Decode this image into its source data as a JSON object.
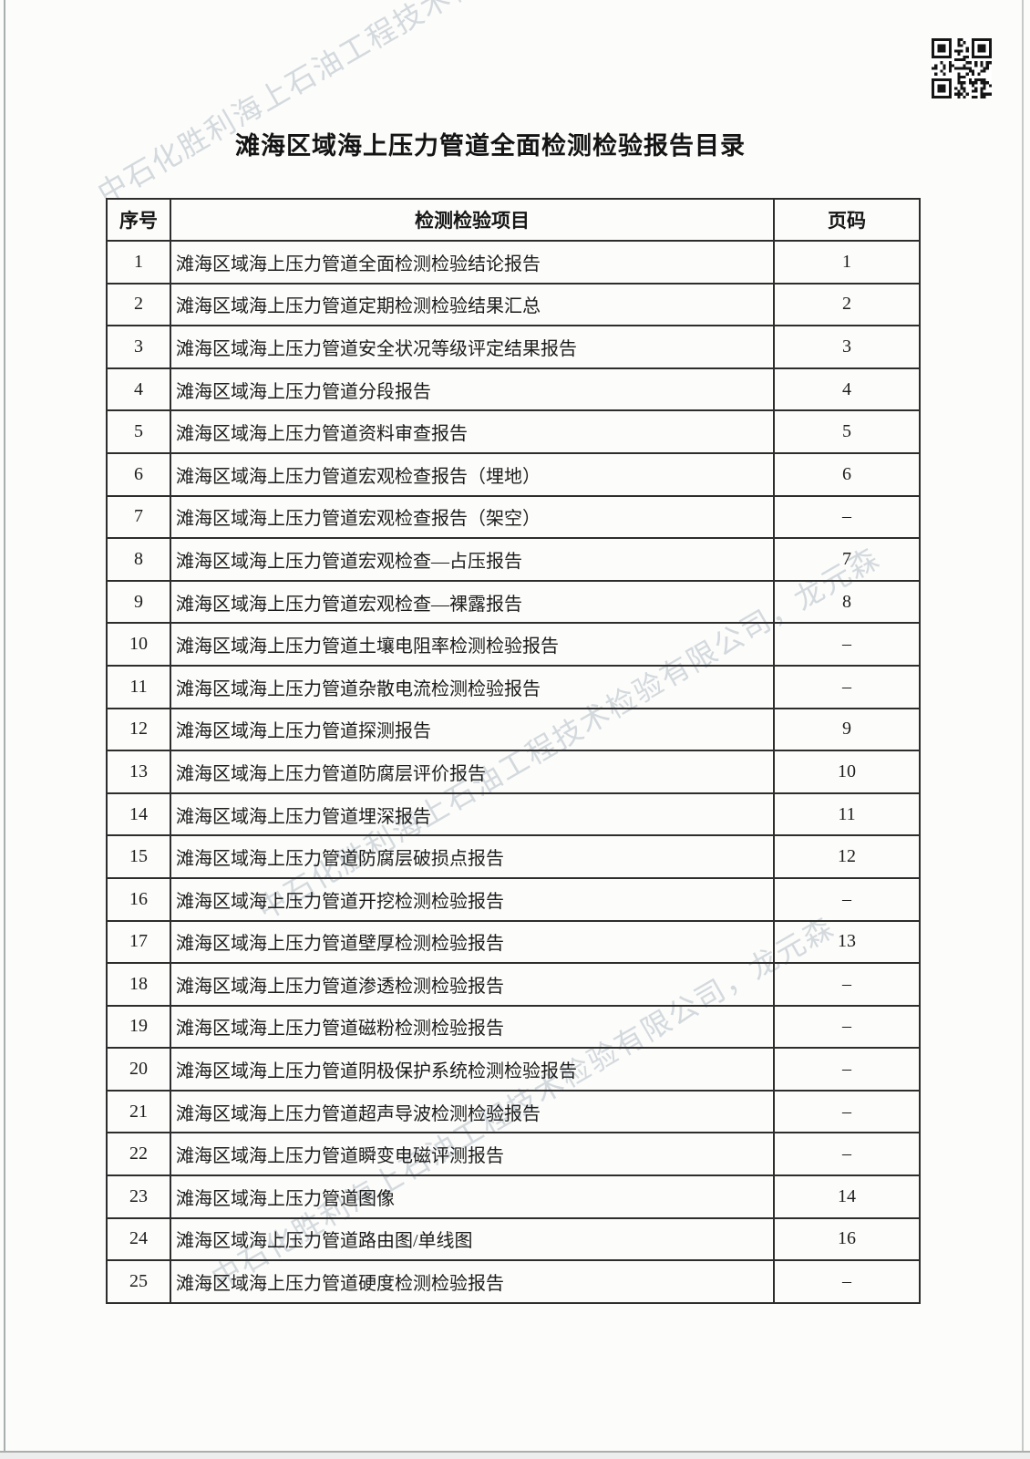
{
  "page": {
    "title": "滩海区域海上压力管道全面检测检验报告目录",
    "watermark_text": "中石化胜利海上石油工程技术检验有限公司，龙元森"
  },
  "qr": {
    "label": "qr-code",
    "color": "#151515"
  },
  "table": {
    "headers": [
      "序号",
      "检测检验项目",
      "页码"
    ],
    "rows": [
      {
        "no": "1",
        "item": "滩海区域海上压力管道全面检测检验结论报告",
        "page": "1"
      },
      {
        "no": "2",
        "item": "滩海区域海上压力管道定期检测检验结果汇总",
        "page": "2"
      },
      {
        "no": "3",
        "item": "滩海区域海上压力管道安全状况等级评定结果报告",
        "page": "3"
      },
      {
        "no": "4",
        "item": "滩海区域海上压力管道分段报告",
        "page": "4"
      },
      {
        "no": "5",
        "item": "滩海区域海上压力管道资料审查报告",
        "page": "5"
      },
      {
        "no": "6",
        "item": "滩海区域海上压力管道宏观检查报告（埋地）",
        "page": "6"
      },
      {
        "no": "7",
        "item": "滩海区域海上压力管道宏观检查报告（架空）",
        "page": "–"
      },
      {
        "no": "8",
        "item": "滩海区域海上压力管道宏观检查—占压报告",
        "page": "7"
      },
      {
        "no": "9",
        "item": "滩海区域海上压力管道宏观检查—裸露报告",
        "page": "8"
      },
      {
        "no": "10",
        "item": "滩海区域海上压力管道土壤电阻率检测检验报告",
        "page": "–"
      },
      {
        "no": "11",
        "item": "滩海区域海上压力管道杂散电流检测检验报告",
        "page": "–"
      },
      {
        "no": "12",
        "item": "滩海区域海上压力管道探测报告",
        "page": "9"
      },
      {
        "no": "13",
        "item": "滩海区域海上压力管道防腐层评价报告",
        "page": "10"
      },
      {
        "no": "14",
        "item": "滩海区域海上压力管道埋深报告",
        "page": "11"
      },
      {
        "no": "15",
        "item": "滩海区域海上压力管道防腐层破损点报告",
        "page": "12"
      },
      {
        "no": "16",
        "item": "滩海区域海上压力管道开挖检测检验报告",
        "page": "–"
      },
      {
        "no": "17",
        "item": "滩海区域海上压力管道壁厚检测检验报告",
        "page": "13"
      },
      {
        "no": "18",
        "item": "滩海区域海上压力管道渗透检测检验报告",
        "page": "–"
      },
      {
        "no": "19",
        "item": "滩海区域海上压力管道磁粉检测检验报告",
        "page": "–"
      },
      {
        "no": "20",
        "item": "滩海区域海上压力管道阴极保护系统检测检验报告",
        "page": "–"
      },
      {
        "no": "21",
        "item": "滩海区域海上压力管道超声导波检测检验报告",
        "page": "–"
      },
      {
        "no": "22",
        "item": "滩海区域海上压力管道瞬变电磁评测报告",
        "page": "–"
      },
      {
        "no": "23",
        "item": "滩海区域海上压力管道图像",
        "page": "14"
      },
      {
        "no": "24",
        "item": "滩海区域海上压力管道路由图/单线图",
        "page": "16"
      },
      {
        "no": "25",
        "item": "滩海区域海上压力管道硬度检测检验报告",
        "page": "–"
      }
    ]
  }
}
